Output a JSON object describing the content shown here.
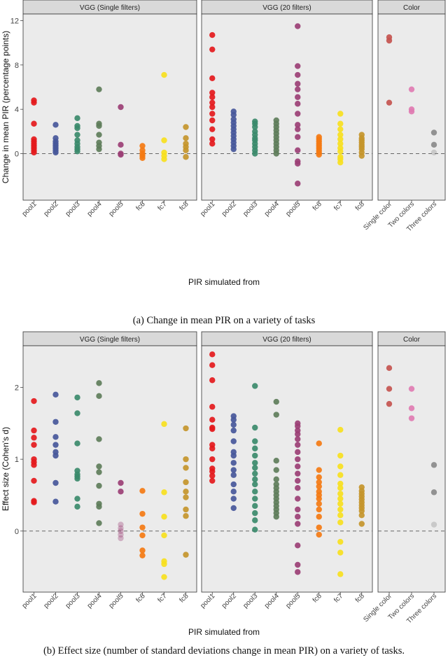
{
  "colors": {
    "panel_bg": "#ebebeb",
    "strip_bg": "#d9d9d9",
    "zero_line": "#666666",
    "pool1": "#e4191c",
    "pool2": "#46579a",
    "pool3": "#3b8a6b",
    "pool4": "#5e7d5a",
    "pool5": "#9b3f75",
    "fc6": "#f47a12",
    "fc7": "#f7df1e",
    "fc8": "#c4952b",
    "single_color": "#c4544f",
    "two_colors": "#e07cb2",
    "three_colors": "#8a8a8a"
  },
  "captions": {
    "a": "(a) Change in mean PIR on a variety of tasks",
    "b": "(b) Effect size (number of standard deviations change in mean PIR) on a variety of tasks."
  },
  "chart_data": [
    {
      "type": "scatter",
      "id": "a",
      "title": "Change in mean PIR on a variety of tasks",
      "xlabel": "PIR simulated from",
      "ylabel": "Change in mean PIR (percentage points)",
      "ylim": [
        -4.2,
        12.6
      ],
      "yticks": [
        0,
        4,
        8,
        12
      ],
      "zero_line": 0,
      "facets": [
        {
          "strip": "VGG (Single filters)",
          "categories": [
            "pool1",
            "pool2",
            "pool3",
            "pool4",
            "pool5",
            "fc6",
            "fc7",
            "fc8"
          ],
          "points": {
            "pool1": [
              4.8,
              4.6,
              2.7,
              1.3,
              1.1,
              0.9,
              0.7,
              0.5,
              0.3,
              0.1
            ],
            "pool2": [
              2.6,
              1.4,
              1.1,
              0.9,
              0.7,
              0.5,
              0.3,
              0.1
            ],
            "pool3": [
              3.2,
              2.5,
              2.3,
              1.7,
              1.2,
              0.9,
              0.6,
              0.4,
              0.2
            ],
            "pool4": [
              5.8,
              2.7,
              2.5,
              1.7,
              1.0,
              0.7,
              0.4
            ],
            "pool5": [
              4.2,
              0.8,
              0.0,
              -0.1
            ],
            "fc6": [
              0.7,
              0.3,
              0.0,
              -0.2,
              -0.4
            ],
            "fc7": [
              7.1,
              1.2,
              0.1,
              -0.2,
              -0.5
            ],
            "fc8": [
              2.4,
              1.4,
              0.9,
              0.6,
              0.3,
              -0.3
            ]
          }
        },
        {
          "strip": "VGG (20 filters)",
          "categories": [
            "pool1",
            "pool2",
            "pool3",
            "pool4",
            "pool5",
            "fc6",
            "fc7",
            "fc8"
          ],
          "points": {
            "pool1": [
              10.7,
              9.4,
              6.8,
              5.5,
              5.1,
              4.6,
              4.2,
              3.6,
              3.0,
              2.2,
              1.3,
              0.9
            ],
            "pool2": [
              3.8,
              3.5,
              3.1,
              2.8,
              2.5,
              2.2,
              1.9,
              1.6,
              1.3,
              1.0,
              0.7,
              0.4
            ],
            "pool3": [
              2.9,
              2.7,
              2.4,
              2.0,
              1.7,
              1.4,
              1.2,
              0.9,
              0.6,
              0.3,
              0.0
            ],
            "pool4": [
              3.0,
              2.7,
              2.4,
              2.1,
              1.8,
              1.5,
              1.2,
              0.9,
              0.6,
              0.3,
              0.0
            ],
            "pool5": [
              11.5,
              7.9,
              7.1,
              6.3,
              5.8,
              5.1,
              4.5,
              3.6,
              2.6,
              2.2,
              1.5,
              0.3,
              -0.7,
              -0.9,
              -2.7
            ],
            "fc6": [
              1.5,
              1.3,
              1.1,
              0.9,
              0.7,
              0.5,
              0.3,
              0.1,
              -0.1
            ],
            "fc7": [
              3.6,
              2.7,
              2.2,
              1.7,
              1.3,
              0.9,
              0.5,
              0.2,
              -0.3,
              -0.5,
              -0.8
            ],
            "fc8": [
              1.7,
              1.4,
              1.2,
              1.0,
              0.8,
              0.6,
              0.4,
              0.1,
              -0.2
            ]
          }
        },
        {
          "strip": "Color",
          "categories": [
            "Single color",
            "Two colors",
            "Three colors"
          ],
          "points": {
            "Single color": [
              10.5,
              10.2,
              4.6
            ],
            "Two colors": [
              5.8,
              4.0,
              3.8
            ],
            "Three colors": [
              1.9,
              0.8,
              0.1
            ]
          }
        }
      ]
    },
    {
      "type": "scatter",
      "id": "b",
      "title": "Effect size (number of standard deviations change in mean PIR) on a variety of tasks.",
      "xlabel": "PIR simulated from",
      "ylabel": "Effect size (Cohen's d)",
      "ylim": [
        -0.85,
        2.58
      ],
      "yticks": [
        0,
        1,
        2
      ],
      "zero_line": 0,
      "facets": [
        {
          "strip": "VGG (Single filters)",
          "categories": [
            "pool1",
            "pool2",
            "pool3",
            "pool4",
            "pool5",
            "fc6",
            "fc7",
            "fc8"
          ],
          "points": {
            "pool1": [
              1.81,
              1.4,
              1.3,
              1.2,
              1.0,
              0.96,
              0.92,
              0.7,
              0.42,
              0.4
            ],
            "pool2": [
              1.9,
              1.52,
              1.31,
              1.2,
              1.1,
              1.05,
              0.67,
              0.41
            ],
            "pool3": [
              1.86,
              1.64,
              1.22,
              0.84,
              0.79,
              0.76,
              0.73,
              0.45,
              0.34
            ],
            "pool4": [
              2.06,
              1.88,
              1.28,
              0.9,
              0.82,
              0.63,
              0.38,
              0.34,
              0.11
            ],
            "pool5": [
              0.67,
              0.55,
              0.09,
              0.04,
              0.0,
              -0.05,
              -0.1
            ],
            "fc6": [
              0.56,
              0.24,
              0.05,
              -0.06,
              -0.27,
              -0.34
            ],
            "fc7": [
              1.49,
              0.54,
              0.2,
              -0.06,
              -0.42,
              -0.46,
              -0.64
            ],
            "fc8": [
              1.43,
              1.0,
              0.88,
              0.68,
              0.55,
              0.47,
              0.3,
              0.21,
              -0.33
            ]
          }
        },
        {
          "strip": "VGG (20 filters)",
          "categories": [
            "pool1",
            "pool2",
            "pool3",
            "pool4",
            "pool5",
            "fc6",
            "fc7",
            "fc8"
          ],
          "points": {
            "pool1": [
              2.46,
              2.31,
              2.1,
              1.73,
              1.55,
              1.44,
              1.42,
              1.2,
              1.15,
              1.0,
              0.87,
              0.83,
              0.77,
              0.7
            ],
            "pool2": [
              1.6,
              1.55,
              1.48,
              1.4,
              1.25,
              1.1,
              1.05,
              0.95,
              0.85,
              0.78,
              0.65,
              0.55,
              0.45,
              0.32
            ],
            "pool3": [
              2.02,
              1.44,
              1.25,
              1.15,
              1.05,
              0.95,
              0.88,
              0.8,
              0.72,
              0.65,
              0.55,
              0.45,
              0.35,
              0.25,
              0.15,
              0.02
            ],
            "pool4": [
              1.8,
              1.62,
              0.98,
              0.85,
              0.72,
              0.65,
              0.6,
              0.55,
              0.5,
              0.45,
              0.4,
              0.35,
              0.3,
              0.25,
              0.2
            ],
            "pool5": [
              1.5,
              1.46,
              1.4,
              1.35,
              1.28,
              1.2,
              1.1,
              1.0,
              0.9,
              0.8,
              0.7,
              0.6,
              0.45,
              0.3,
              0.2,
              0.1,
              -0.2,
              -0.47,
              -0.57
            ],
            "fc6": [
              1.22,
              0.85,
              0.75,
              0.68,
              0.62,
              0.55,
              0.5,
              0.45,
              0.38,
              0.3,
              0.2,
              0.05,
              -0.05
            ],
            "fc7": [
              1.41,
              1.05,
              0.9,
              0.78,
              0.66,
              0.6,
              0.52,
              0.45,
              0.38,
              0.3,
              0.22,
              0.12,
              -0.15,
              -0.3,
              -0.6
            ],
            "fc8": [
              0.61,
              0.56,
              0.52,
              0.48,
              0.44,
              0.4,
              0.36,
              0.32,
              0.28,
              0.22,
              0.1
            ]
          }
        },
        {
          "strip": "Color",
          "categories": [
            "Single color",
            "Two colors",
            "Three colors"
          ],
          "points": {
            "Single color": [
              2.27,
              1.98,
              1.77
            ],
            "Two colors": [
              1.98,
              1.71,
              1.57
            ],
            "Three colors": [
              0.92,
              0.54,
              0.09
            ]
          }
        }
      ]
    }
  ]
}
